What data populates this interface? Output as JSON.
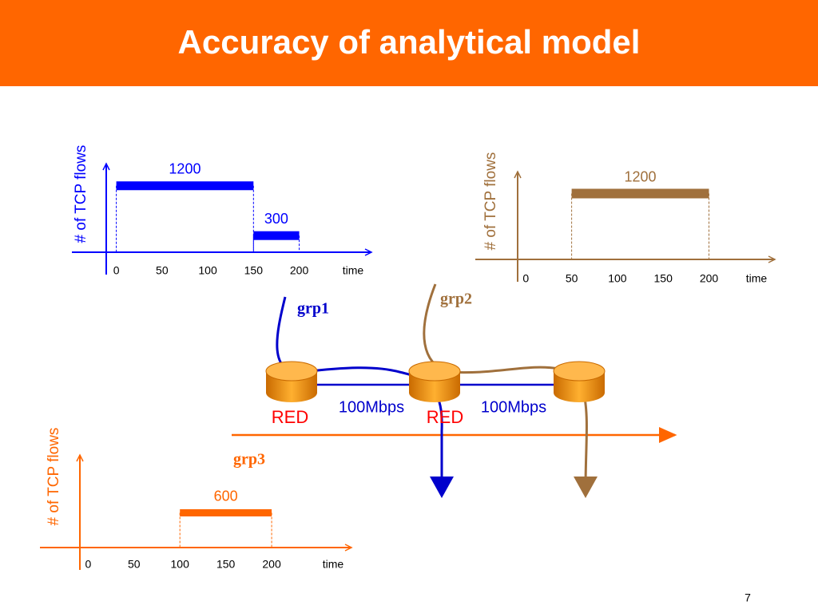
{
  "title": "Accuracy of analytical model",
  "chart_data": [
    {
      "type": "segment",
      "y_label": "# of TCP flows",
      "x_label": "time",
      "color": "#0000ff",
      "xlim": [
        -11,
        279
      ],
      "ylim": [
        0,
        1600
      ],
      "xticks": [
        0,
        50,
        100,
        150,
        200
      ],
      "segments": [
        {
          "start": 0,
          "end": 150,
          "value": 1200
        },
        {
          "start": 150,
          "end": 200,
          "value": 300
        }
      ]
    },
    {
      "type": "segment",
      "y_label": "# of TCP flows",
      "x_label": "time",
      "color": "#a0703c",
      "xlim": [
        -9,
        272
      ],
      "ylim": [
        0,
        1600
      ],
      "xticks": [
        0,
        50,
        100,
        150,
        200
      ],
      "segments": [
        {
          "start": 50,
          "end": 200,
          "value": 1200
        }
      ]
    },
    {
      "type": "segment",
      "y_label": "# of TCP flows",
      "x_label": "time",
      "color": "#ff6600",
      "xlim": [
        -9,
        287
      ],
      "ylim": [
        0,
        1600
      ],
      "xticks": [
        0,
        50,
        100,
        150,
        200
      ],
      "segments": [
        {
          "start": 100,
          "end": 200,
          "value": 600
        }
      ]
    }
  ],
  "diagram": {
    "groups": [
      "grp1",
      "grp2",
      "grp3"
    ],
    "links": [
      "100Mbps",
      "100Mbps"
    ],
    "queues": [
      "RED",
      "RED"
    ]
  },
  "page_number": "7"
}
